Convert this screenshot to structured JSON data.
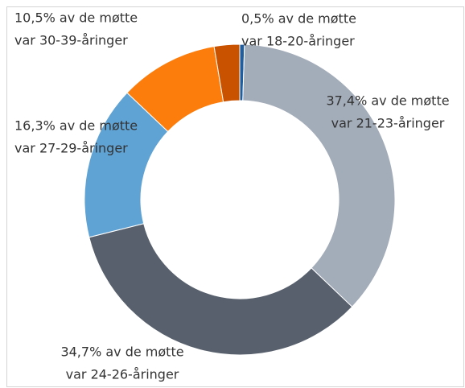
{
  "chart_data": {
    "type": "donut",
    "categories": [
      "var 18-20-åringer",
      "var 21-23-åringer",
      "var 24-26-åringer",
      "var 27-29-åringer",
      "var 30-39-åringer",
      null
    ],
    "values": [
      0.5,
      37.4,
      34.7,
      16.3,
      10.5,
      2.7
    ],
    "value_labels": [
      "0,5% av de møtte",
      "37,4% av de møtte",
      "34,7% av de møtte",
      "16,3% av de møtte",
      "10,5% av de møtte",
      null
    ],
    "colors": [
      "#1f5fa0",
      "#a3acb9",
      "#57606c",
      "#5fa2d4",
      "#fc7d0b",
      "#c85200"
    ]
  }
}
